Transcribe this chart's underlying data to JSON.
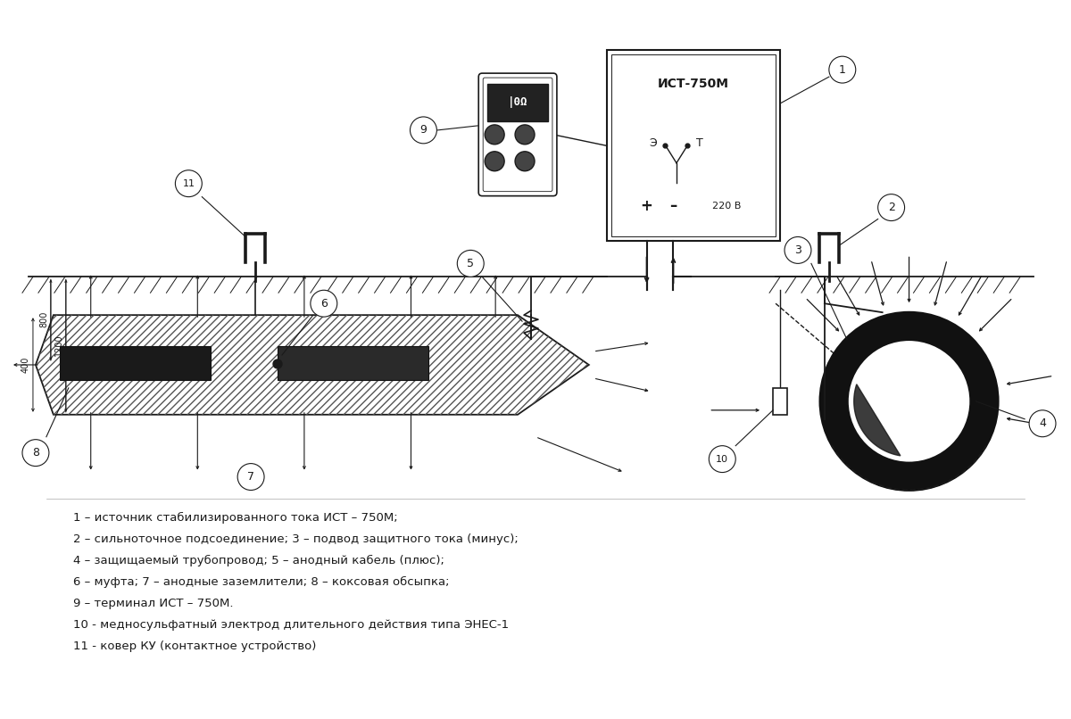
{
  "line_color": "#1a1a1a",
  "legend_lines": [
    "1 – источник стабилизированного тока ИСТ – 750М;",
    "2 – сильноточное подсоединение; 3 – подвод защитного тока (минус);",
    "4 – защищаемый трубопровод; 5 – анодный кабель (плюс);",
    "6 – муфта; 7 – анодные заземлители; 8 – коксовая обсыпка;",
    "9 – терминал ИСТ – 750М.",
    "10 - медносульфатный электрод длительного действия типа ЭНЕС-1",
    "11 - ковер КУ (контактное устройство)"
  ]
}
